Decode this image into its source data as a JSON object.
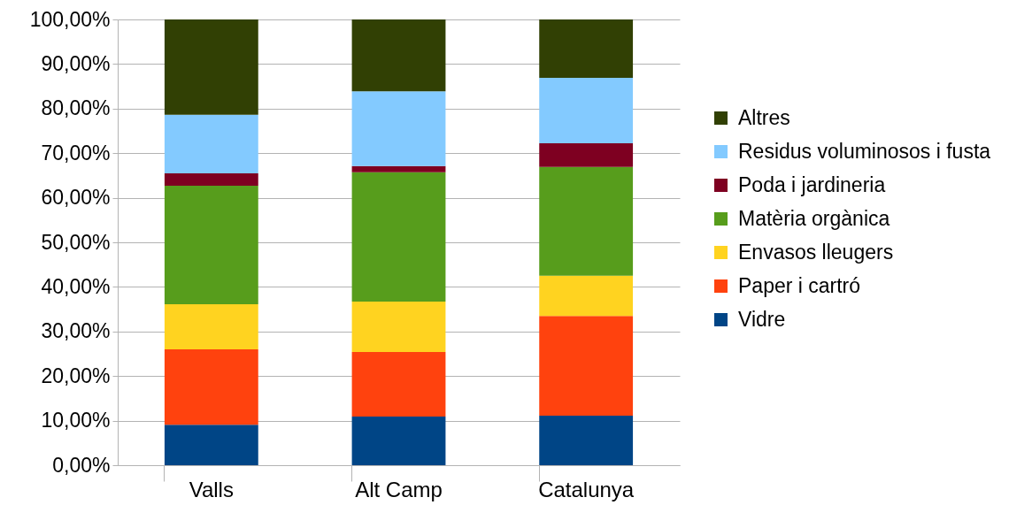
{
  "chart_data": {
    "type": "bar",
    "stacked": true,
    "categories": [
      "Valls",
      "Alt Camp",
      "Catalunya"
    ],
    "series": [
      {
        "name": "Vidre",
        "color": "#004586",
        "values": [
          9.1,
          10.9,
          11.1
        ]
      },
      {
        "name": "Paper i cartró",
        "color": "#ff420e",
        "values": [
          16.9,
          14.5,
          22.4
        ]
      },
      {
        "name": "Envasos lleugers",
        "color": "#ffd320",
        "values": [
          10.1,
          11.3,
          9.0
        ]
      },
      {
        "name": "Matèria orgànica",
        "color": "#579d1c",
        "values": [
          26.6,
          29.0,
          24.4
        ]
      },
      {
        "name": "Poda i jardineria",
        "color": "#7e0021",
        "values": [
          2.8,
          1.4,
          5.3
        ]
      },
      {
        "name": "Residus voluminosos i fusta",
        "color": "#83caff",
        "values": [
          13.1,
          16.8,
          14.7
        ]
      },
      {
        "name": "Altres",
        "color": "#314004",
        "values": [
          21.4,
          16.1,
          13.1
        ]
      }
    ],
    "ylim": [
      0,
      100
    ],
    "yticks": [
      {
        "value": 0,
        "label": "0,00%"
      },
      {
        "value": 10,
        "label": "10,00%"
      },
      {
        "value": 20,
        "label": "20,00%"
      },
      {
        "value": 30,
        "label": "30,00%"
      },
      {
        "value": 40,
        "label": "40,00%"
      },
      {
        "value": 50,
        "label": "50,00%"
      },
      {
        "value": 60,
        "label": "60,00%"
      },
      {
        "value": 70,
        "label": "70,00%"
      },
      {
        "value": 80,
        "label": "80,00%"
      },
      {
        "value": 90,
        "label": "90,00%"
      },
      {
        "value": 100,
        "label": "100,00%"
      }
    ],
    "grid": "y",
    "legend": "right"
  }
}
